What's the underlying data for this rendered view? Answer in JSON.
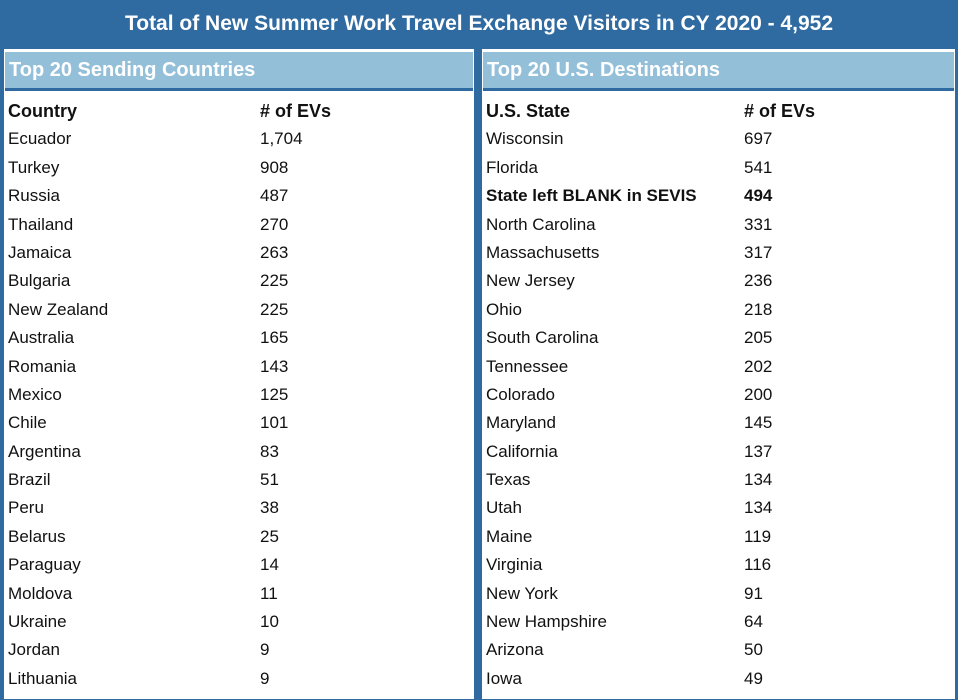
{
  "title": "Total of New Summer Work Travel  Exchange Visitors in CY 2020 - 4,952",
  "left": {
    "heading": "Top 20 Sending Countries",
    "col1": "Country",
    "col2": "# of EVs",
    "rows": [
      {
        "name": "Ecuador",
        "value": "1,704"
      },
      {
        "name": "Turkey",
        "value": "908"
      },
      {
        "name": "Russia",
        "value": "487"
      },
      {
        "name": "Thailand",
        "value": "270"
      },
      {
        "name": "Jamaica",
        "value": "263"
      },
      {
        "name": "Bulgaria",
        "value": "225"
      },
      {
        "name": "New Zealand",
        "value": "225"
      },
      {
        "name": "Australia",
        "value": "165"
      },
      {
        "name": "Romania",
        "value": "143"
      },
      {
        "name": "Mexico",
        "value": "125"
      },
      {
        "name": "Chile",
        "value": "101"
      },
      {
        "name": "Argentina",
        "value": "83"
      },
      {
        "name": "Brazil",
        "value": "51"
      },
      {
        "name": "Peru",
        "value": "38"
      },
      {
        "name": "Belarus",
        "value": "25"
      },
      {
        "name": "Paraguay",
        "value": "14"
      },
      {
        "name": "Moldova",
        "value": "11"
      },
      {
        "name": "Ukraine",
        "value": "10"
      },
      {
        "name": "Jordan",
        "value": "9"
      },
      {
        "name": "Lithuania",
        "value": "9"
      }
    ]
  },
  "right": {
    "heading": "Top 20 U.S. Destinations",
    "col1": "U.S. State",
    "col2": "# of EVs",
    "rows": [
      {
        "name": "Wisconsin",
        "value": "697"
      },
      {
        "name": "Florida",
        "value": "541"
      },
      {
        "name": "State left BLANK in SEVIS",
        "value": "494",
        "bold": true
      },
      {
        "name": "North Carolina",
        "value": "331"
      },
      {
        "name": "Massachusetts",
        "value": "317"
      },
      {
        "name": "New Jersey",
        "value": "236"
      },
      {
        "name": "Ohio",
        "value": "218"
      },
      {
        "name": "South Carolina",
        "value": "205"
      },
      {
        "name": "Tennessee",
        "value": "202"
      },
      {
        "name": "Colorado",
        "value": "200"
      },
      {
        "name": "Maryland",
        "value": "145"
      },
      {
        "name": "California",
        "value": "137"
      },
      {
        "name": "Texas",
        "value": "134"
      },
      {
        "name": "Utah",
        "value": "134"
      },
      {
        "name": "Maine",
        "value": "119"
      },
      {
        "name": "Virginia",
        "value": "116"
      },
      {
        "name": "New York",
        "value": "91"
      },
      {
        "name": "New Hampshire",
        "value": "64"
      },
      {
        "name": "Arizona",
        "value": "50"
      },
      {
        "name": "Iowa",
        "value": "49"
      }
    ]
  }
}
